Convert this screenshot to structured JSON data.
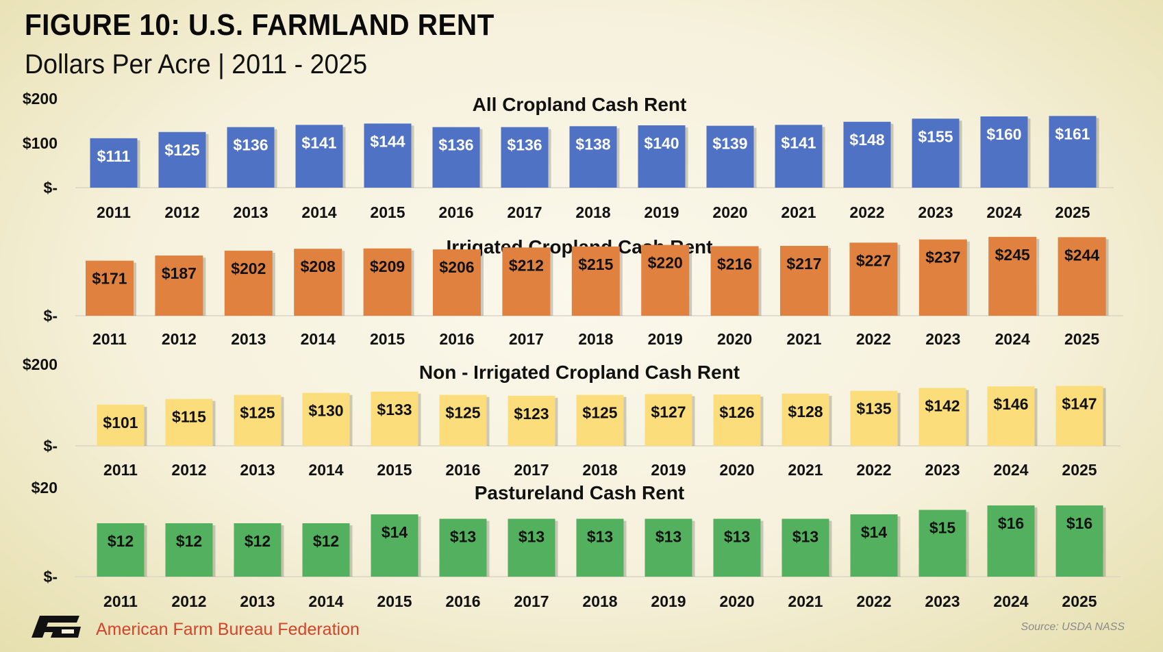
{
  "header": {
    "title": "FIGURE 10: U.S. FARMLAND RENT",
    "subtitle": "Dollars Per Acre | 2011 - 2025"
  },
  "footer": {
    "organization": "American Farm Bureau Federation",
    "source": "Source: USDA NASS"
  },
  "colors": {
    "all_cropland": "#4f72c4",
    "irrigated": "#e0813f",
    "non_irrigated": "#fbdd7c",
    "pastureland": "#52b05f"
  },
  "chart_data": [
    {
      "type": "bar",
      "title": "All Cropland Cash Rent",
      "categories": [
        "2011",
        "2012",
        "2013",
        "2014",
        "2015",
        "2016",
        "2017",
        "2018",
        "2019",
        "2020",
        "2021",
        "2022",
        "2023",
        "2024",
        "2025"
      ],
      "values": [
        111,
        125,
        136,
        141,
        144,
        136,
        136,
        138,
        140,
        139,
        141,
        148,
        155,
        160,
        161
      ],
      "value_labels": [
        "$111",
        "$125",
        "$136",
        "$141",
        "$144",
        "$136",
        "$136",
        "$138",
        "$140",
        "$139",
        "$141",
        "$148",
        "$155",
        "$160",
        "$161"
      ],
      "y_ticks": [
        {
          "value": 0,
          "label": "$-"
        },
        {
          "value": 100,
          "label": "$100"
        },
        {
          "value": 200,
          "label": "$200"
        }
      ],
      "ylim": [
        0,
        200
      ],
      "color": "#4f72c4",
      "label_color": "#ffffff"
    },
    {
      "type": "bar",
      "title": "Irrigated Cropland Cash Rent",
      "categories": [
        "2011",
        "2012",
        "2013",
        "2014",
        "2015",
        "2016",
        "2017",
        "2018",
        "2019",
        "2020",
        "2021",
        "2022",
        "2023",
        "2024",
        "2025"
      ],
      "values": [
        171,
        187,
        202,
        208,
        209,
        206,
        212,
        215,
        220,
        216,
        217,
        227,
        237,
        245,
        244
      ],
      "value_labels": [
        "$171",
        "$187",
        "$202",
        "$208",
        "$209",
        "$206",
        "$212",
        "$215",
        "$220",
        "$216",
        "$217",
        "$227",
        "$237",
        "$245",
        "$244"
      ],
      "y_ticks": [
        {
          "value": 0,
          "label": "$-"
        }
      ],
      "ylim": [
        0,
        300
      ],
      "color": "#e0813f",
      "label_color": "#111111"
    },
    {
      "type": "bar",
      "title": "Non - Irrigated Cropland Cash Rent",
      "categories": [
        "2011",
        "2012",
        "2013",
        "2014",
        "2015",
        "2016",
        "2017",
        "2018",
        "2019",
        "2020",
        "2021",
        "2022",
        "2023",
        "2024",
        "2025"
      ],
      "values": [
        101,
        115,
        125,
        130,
        133,
        125,
        123,
        125,
        127,
        126,
        128,
        135,
        142,
        146,
        147
      ],
      "value_labels": [
        "$101",
        "$115",
        "$125",
        "$130",
        "$133",
        "$125",
        "$123",
        "$125",
        "$127",
        "$126",
        "$128",
        "$135",
        "$142",
        "$146",
        "$147"
      ],
      "y_ticks": [
        {
          "value": 0,
          "label": "$-"
        },
        {
          "value": 200,
          "label": "$200"
        }
      ],
      "ylim": [
        0,
        200
      ],
      "color": "#fbdd7c",
      "label_color": "#111111"
    },
    {
      "type": "bar",
      "title": "Pastureland Cash Rent",
      "categories": [
        "2011",
        "2012",
        "2013",
        "2014",
        "2015",
        "2016",
        "2017",
        "2018",
        "2019",
        "2020",
        "2021",
        "2022",
        "2023",
        "2024",
        "2025"
      ],
      "values": [
        12,
        12,
        12,
        12,
        14,
        13,
        13,
        13,
        13,
        13,
        13,
        14,
        15,
        16,
        16
      ],
      "value_labels": [
        "$12",
        "$12",
        "$12",
        "$12",
        "$14",
        "$13",
        "$13",
        "$13",
        "$13",
        "$13",
        "$13",
        "$14",
        "$15",
        "$16",
        "$16"
      ],
      "y_ticks": [
        {
          "value": 0,
          "label": "$-"
        },
        {
          "value": 20,
          "label": "$20"
        }
      ],
      "ylim": [
        0,
        20
      ],
      "color": "#52b05f",
      "label_color": "#111111"
    }
  ]
}
